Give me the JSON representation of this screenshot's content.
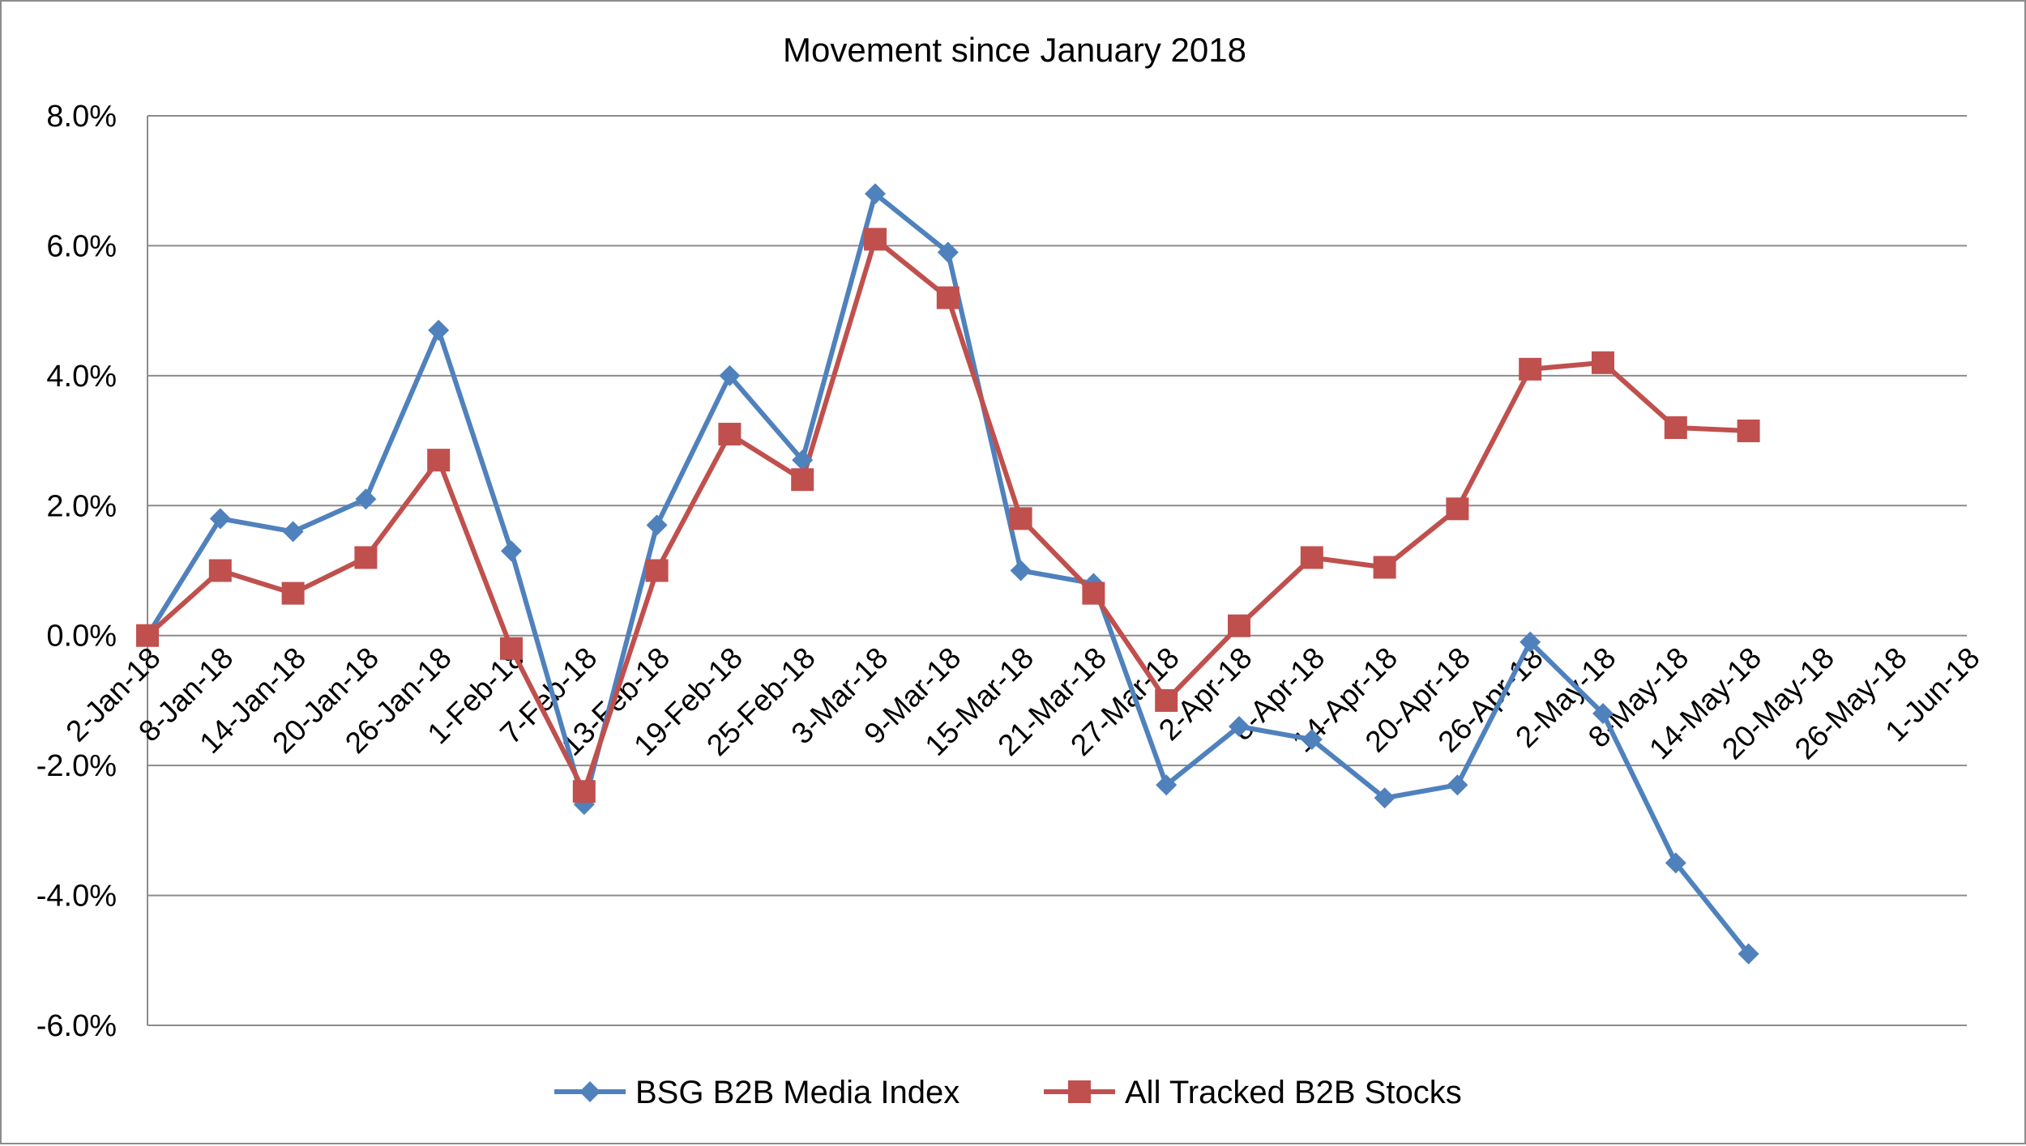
{
  "chart_data": {
    "type": "line",
    "title": "Movement since January 2018",
    "xlabel": "",
    "ylabel": "",
    "ylim": [
      -6,
      8
    ],
    "ytick_step": 2,
    "ytick_labels": [
      "8.0%",
      "6.0%",
      "4.0%",
      "2.0%",
      "0.0%",
      "-2.0%",
      "-4.0%",
      "-6.0%"
    ],
    "grid": "horizontal",
    "legend_position": "bottom",
    "x_tick_labels": [
      "2-Jan-18",
      "8-Jan-18",
      "14-Jan-18",
      "20-Jan-18",
      "26-Jan-18",
      "1-Feb-18",
      "7-Feb-18",
      "13-Feb-18",
      "19-Feb-18",
      "25-Feb-18",
      "3-Mar-18",
      "9-Mar-18",
      "15-Mar-18",
      "21-Mar-18",
      "27-Mar-18",
      "2-Apr-18",
      "8-Apr-18",
      "14-Apr-18",
      "20-Apr-18",
      "26-Apr-18",
      "2-May-18",
      "8-May-18",
      "14-May-18",
      "20-May-18",
      "26-May-18",
      "1-Jun-18"
    ],
    "x": [
      "2-Jan-18",
      "8-Jan-18",
      "14-Jan-18",
      "20-Jan-18",
      "26-Jan-18",
      "1-Feb-18",
      "7-Feb-18",
      "13-Feb-18",
      "19-Feb-18",
      "25-Feb-18",
      "3-Mar-18",
      "9-Mar-18",
      "15-Mar-18",
      "21-Mar-18",
      "27-Mar-18",
      "2-Apr-18",
      "8-Apr-18",
      "14-Apr-18",
      "20-Apr-18",
      "26-Apr-18",
      "2-May-18",
      "8-May-18",
      "14-May-18",
      "20-May-18",
      "26-May-18",
      "1-Jun-18"
    ],
    "x_span_days": 154,
    "series": [
      {
        "name": "BSG B2B Media Index",
        "color": "#4F81BD",
        "marker": "diamond",
        "points": [
          {
            "x": "2-Jan-18",
            "y": 0.0
          },
          {
            "x": "8-Jan-18",
            "y": 1.8
          },
          {
            "x": "14-Jan-18",
            "y": 1.6
          },
          {
            "x": "20-Jan-18",
            "y": 2.1
          },
          {
            "x": "26-Jan-18",
            "y": 4.7
          },
          {
            "x": "1-Feb-18",
            "y": 1.3
          },
          {
            "x": "7-Feb-18",
            "y": -2.6
          },
          {
            "x": "13-Feb-18",
            "y": 1.7
          },
          {
            "x": "19-Feb-18",
            "y": 4.0
          },
          {
            "x": "25-Feb-18",
            "y": 2.7
          },
          {
            "x": "3-Mar-18",
            "y": 6.8
          },
          {
            "x": "9-Mar-18",
            "y": 5.9
          },
          {
            "x": "15-Mar-18",
            "y": 1.0
          },
          {
            "x": "21-Mar-18",
            "y": 0.8
          },
          {
            "x": "27-Mar-18",
            "y": -2.3
          },
          {
            "x": "2-Apr-18",
            "y": -1.4
          },
          {
            "x": "8-Apr-18",
            "y": -1.6
          },
          {
            "x": "14-Apr-18",
            "y": -2.5
          },
          {
            "x": "20-Apr-18",
            "y": -2.3
          },
          {
            "x": "26-Apr-18",
            "y": -0.1
          },
          {
            "x": "2-May-18",
            "y": -1.2
          },
          {
            "x": "8-May-18",
            "y": -3.5
          },
          {
            "x": "14-May-18",
            "y": -4.9
          }
        ]
      },
      {
        "name": "All Tracked B2B Stocks",
        "color": "#C0504D",
        "marker": "square",
        "points": [
          {
            "x": "2-Jan-18",
            "y": 0.0
          },
          {
            "x": "8-Jan-18",
            "y": 1.0
          },
          {
            "x": "14-Jan-18",
            "y": 0.65
          },
          {
            "x": "20-Jan-18",
            "y": 1.2
          },
          {
            "x": "26-Jan-18",
            "y": 2.7
          },
          {
            "x": "1-Feb-18",
            "y": -0.2
          },
          {
            "x": "7-Feb-18",
            "y": -2.4
          },
          {
            "x": "13-Feb-18",
            "y": 1.0
          },
          {
            "x": "19-Feb-18",
            "y": 3.1
          },
          {
            "x": "25-Feb-18",
            "y": 2.4
          },
          {
            "x": "3-Mar-18",
            "y": 6.1
          },
          {
            "x": "9-Mar-18",
            "y": 5.2
          },
          {
            "x": "15-Mar-18",
            "y": 1.8
          },
          {
            "x": "21-Mar-18",
            "y": 0.65
          },
          {
            "x": "27-Mar-18",
            "y": -1.0
          },
          {
            "x": "2-Apr-18",
            "y": 0.15
          },
          {
            "x": "8-Apr-18",
            "y": 1.2
          },
          {
            "x": "14-Apr-18",
            "y": 1.05
          },
          {
            "x": "20-Apr-18",
            "y": 1.95
          },
          {
            "x": "26-Apr-18",
            "y": 4.1
          },
          {
            "x": "2-May-18",
            "y": 4.2
          },
          {
            "x": "8-May-18",
            "y": 3.2
          },
          {
            "x": "14-May-18",
            "y": 3.15
          }
        ]
      }
    ]
  }
}
